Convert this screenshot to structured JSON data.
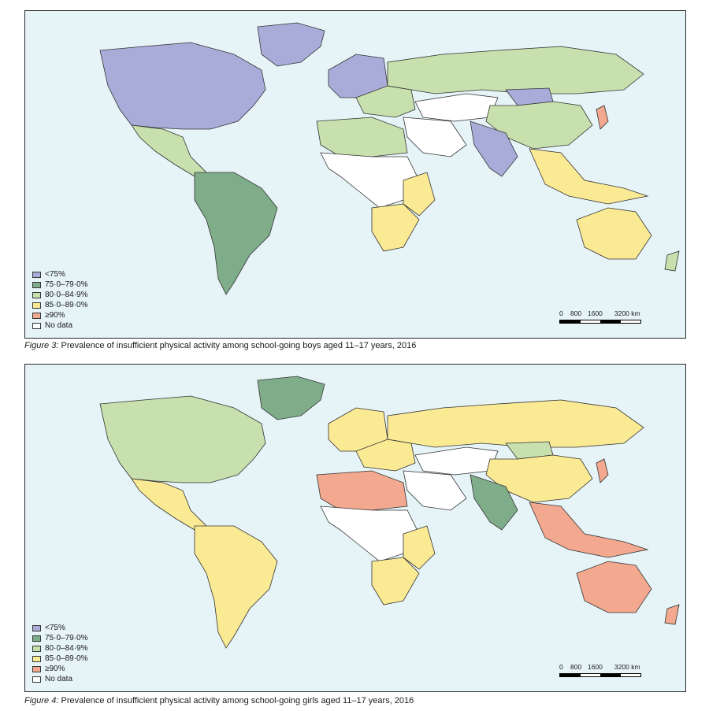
{
  "figures": [
    {
      "id": "boys",
      "caption_label": "Figure 3:",
      "caption_text": " Prevalence of insufficient physical activity among school-going boys aged 11–17 years, 2016",
      "regions": {
        "north_america": "lt75",
        "greenland": "lt75",
        "mexico_central_america": "c80",
        "south_america": "c75",
        "northern_europe": "lt75",
        "eastern_europe": "c80",
        "russia": "c80",
        "central_asia": "none",
        "mongolia": "lt75",
        "china": "c80",
        "south_asia": "lt75",
        "middle_east": "none",
        "north_africa": "c80",
        "sub_saharan_africa": "none",
        "east_africa": "c85",
        "southern_africa": "c85",
        "southeast_asia": "c85",
        "japan": "ge90",
        "australia": "c85",
        "new_zealand": "c80"
      }
    },
    {
      "id": "girls",
      "caption_label": "Figure 4:",
      "caption_text": " Prevalence of insufficient physical activity among school-going girls aged 11–17 years, 2016",
      "regions": {
        "north_america": "c80",
        "greenland": "c75",
        "mexico_central_america": "c85",
        "south_america": "c85",
        "northern_europe": "c85",
        "eastern_europe": "c85",
        "russia": "c85",
        "central_asia": "none",
        "mongolia": "c80",
        "china": "c85",
        "south_asia": "c75",
        "middle_east": "none",
        "north_africa": "ge90",
        "sub_saharan_africa": "none",
        "east_africa": "c85",
        "southern_africa": "c85",
        "southeast_asia": "ge90",
        "japan": "ge90",
        "australia": "ge90",
        "new_zealand": "ge90"
      }
    }
  ],
  "legend": [
    {
      "key": "lt75",
      "label": "<75%",
      "color": "#a9acd9"
    },
    {
      "key": "c75",
      "label": "75·0–79·0%",
      "color": "#7fad8a"
    },
    {
      "key": "c80",
      "label": "80·0–84·9%",
      "color": "#c8dfae"
    },
    {
      "key": "c85",
      "label": "85·0–89·0%",
      "color": "#fbea94"
    },
    {
      "key": "ge90",
      "label": "≥90%",
      "color": "#f3a98f"
    },
    {
      "key": "none",
      "label": "No data",
      "color": "#ffffff"
    }
  ],
  "scale": {
    "ticks": [
      "0",
      "800",
      "1600",
      "3200 km"
    ]
  },
  "ocean_color": "#e6f3f7"
}
